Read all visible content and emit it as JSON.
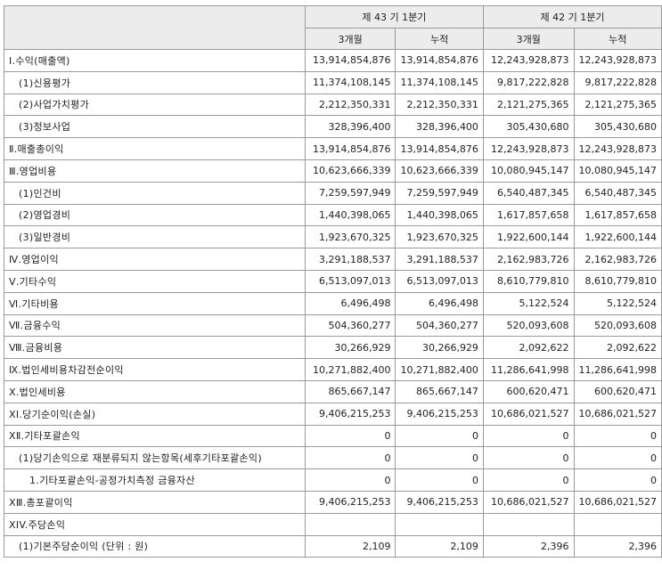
{
  "header": {
    "period_current": "제 43 기 1분기",
    "period_prior": "제 42 기 1분기",
    "sub": [
      "3개월",
      "누적",
      "3개월",
      "누적"
    ]
  },
  "rows": [
    {
      "label": "Ⅰ.수익(매출액)",
      "values": [
        "13,914,854,876",
        "13,914,854,876",
        "12,243,928,873",
        "12,243,928,873"
      ],
      "highlight": true
    },
    {
      "label": "(1)신용평가",
      "values": [
        "11,374,108,145",
        "11,374,108,145",
        "9,817,222,828",
        "9,817,222,828"
      ],
      "indent": 1
    },
    {
      "label": "(2)사업가치평가",
      "values": [
        "2,212,350,331",
        "2,212,350,331",
        "2,121,275,365",
        "2,121,275,365"
      ],
      "indent": 1
    },
    {
      "label": "(3)정보사업",
      "values": [
        "328,396,400",
        "328,396,400",
        "305,430,680",
        "305,430,680"
      ],
      "indent": 1
    },
    {
      "label": "Ⅱ.매출총이익",
      "values": [
        "13,914,854,876",
        "13,914,854,876",
        "12,243,928,873",
        "12,243,928,873"
      ]
    },
    {
      "label": "Ⅲ.영업비용",
      "values": [
        "10,623,666,339",
        "10,623,666,339",
        "10,080,945,147",
        "10,080,945,147"
      ]
    },
    {
      "label": "(1)인건비",
      "values": [
        "7,259,597,949",
        "7,259,597,949",
        "6,540,487,345",
        "6,540,487,345"
      ],
      "indent": 1
    },
    {
      "label": "(2)영업경비",
      "values": [
        "1,440,398,065",
        "1,440,398,065",
        "1,617,857,658",
        "1,617,857,658"
      ],
      "indent": 1
    },
    {
      "label": "(3)일반경비",
      "values": [
        "1,923,670,325",
        "1,923,670,325",
        "1,922,600,144",
        "1,922,600,144"
      ],
      "indent": 1
    },
    {
      "label": "Ⅳ.영업이익",
      "values": [
        "3,291,188,537",
        "3,291,188,537",
        "2,162,983,726",
        "2,162,983,726"
      ],
      "highlight": true
    },
    {
      "label": "Ⅴ.기타수익",
      "values": [
        "6,513,097,013",
        "6,513,097,013",
        "8,610,779,810",
        "8,610,779,810"
      ]
    },
    {
      "label": "Ⅵ.기타비용",
      "values": [
        "6,496,498",
        "6,496,498",
        "5,122,524",
        "5,122,524"
      ]
    },
    {
      "label": "Ⅶ.금융수익",
      "values": [
        "504,360,277",
        "504,360,277",
        "520,093,608",
        "520,093,608"
      ]
    },
    {
      "label": "Ⅷ.금융비용",
      "values": [
        "30,266,929",
        "30,266,929",
        "2,092,622",
        "2,092,622"
      ]
    },
    {
      "label": "Ⅸ.법인세비용차감전순이익",
      "values": [
        "10,271,882,400",
        "10,271,882,400",
        "11,286,641,998",
        "11,286,641,998"
      ]
    },
    {
      "label": "Ⅹ.법인세비용",
      "values": [
        "865,667,147",
        "865,667,147",
        "600,620,471",
        "600,620,471"
      ]
    },
    {
      "label": "XI.당기순이익(손실)",
      "values": [
        "9,406,215,253",
        "9,406,215,253",
        "10,686,021,527",
        "10,686,021,527"
      ]
    },
    {
      "label": "XⅡ.기타포괄손익",
      "values": [
        "0",
        "0",
        "0",
        "0"
      ]
    },
    {
      "label": "(1)당기손익으로 재분류되지 않는항목(세후기타포괄손익)",
      "values": [
        "0",
        "0",
        "0",
        "0"
      ],
      "indent": 1
    },
    {
      "label": "1.기타포괄손익-공정가치측정 금융자산",
      "values": [
        "0",
        "0",
        "0",
        "0"
      ],
      "indent": 2
    },
    {
      "label": "XⅢ.총포괄이익",
      "values": [
        "9,406,215,253",
        "9,406,215,253",
        "10,686,021,527",
        "10,686,021,527"
      ]
    },
    {
      "label": "XIV.주당손익",
      "values": [
        "",
        "",
        "",
        ""
      ]
    },
    {
      "label": "(1)기본주당순이익 (단위 : 원)",
      "values": [
        "2,109",
        "2,109",
        "2,396",
        "2,396"
      ],
      "indent": 1
    }
  ]
}
